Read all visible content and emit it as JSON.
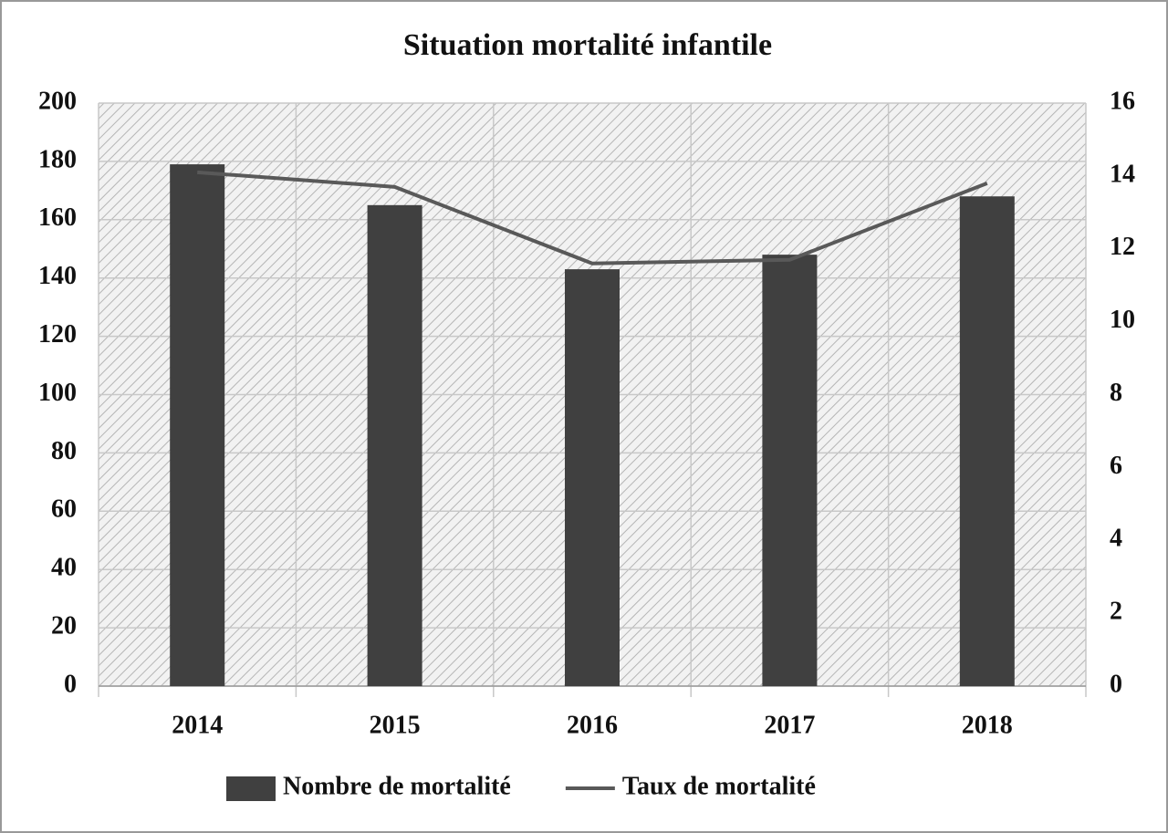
{
  "chart_data": {
    "type": "bar",
    "title": "Situation mortalité infantile",
    "categories": [
      "2014",
      "2015",
      "2016",
      "2017",
      "2018"
    ],
    "series": [
      {
        "name": "Nombre de mortalité",
        "type": "bar",
        "color": "#404040",
        "values": [
          179,
          165,
          143,
          148,
          168
        ]
      },
      {
        "name": "Taux de mortalité",
        "type": "line",
        "axis": "y2",
        "color": "#595959",
        "values": [
          14.1,
          13.7,
          11.6,
          11.7,
          13.8
        ]
      }
    ],
    "ylim": [
      0,
      200
    ],
    "yticks": [
      0,
      20,
      40,
      60,
      80,
      100,
      120,
      140,
      160,
      180,
      200
    ],
    "y2lim": [
      0,
      16
    ],
    "y2ticks": [
      0,
      2,
      4,
      6,
      8,
      10,
      12,
      14,
      16
    ],
    "grid": true,
    "legend": "bottom"
  }
}
